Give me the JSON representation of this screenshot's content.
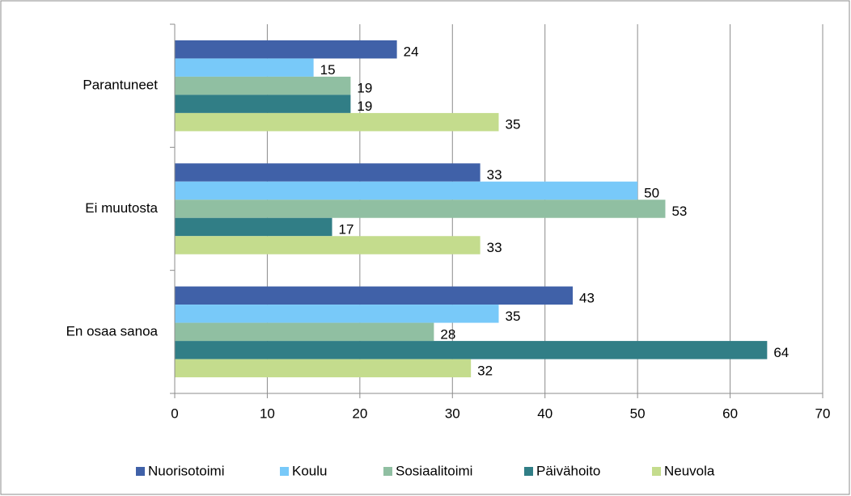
{
  "chart_data": {
    "type": "barh",
    "categories": [
      "Parantuneet",
      "Ei muutosta",
      "En osaa sanoa"
    ],
    "series": [
      {
        "name": "Nuorisotoimi",
        "color": "#4061a8",
        "values": [
          24,
          33,
          43
        ]
      },
      {
        "name": "Koulu",
        "color": "#78c9f9",
        "values": [
          15,
          50,
          35
        ]
      },
      {
        "name": "Sosiaalitoimi",
        "color": "#90bfa2",
        "values": [
          19,
          53,
          28
        ]
      },
      {
        "name": "Päivähoito",
        "color": "#317e86",
        "values": [
          19,
          17,
          64
        ]
      },
      {
        "name": "Neuvola",
        "color": "#c4dc8d",
        "values": [
          35,
          33,
          32
        ]
      }
    ],
    "xlim": [
      0,
      70
    ],
    "xticks": [
      0,
      10,
      20,
      30,
      40,
      50,
      60,
      70
    ],
    "grid": true,
    "legend": "bottom"
  }
}
